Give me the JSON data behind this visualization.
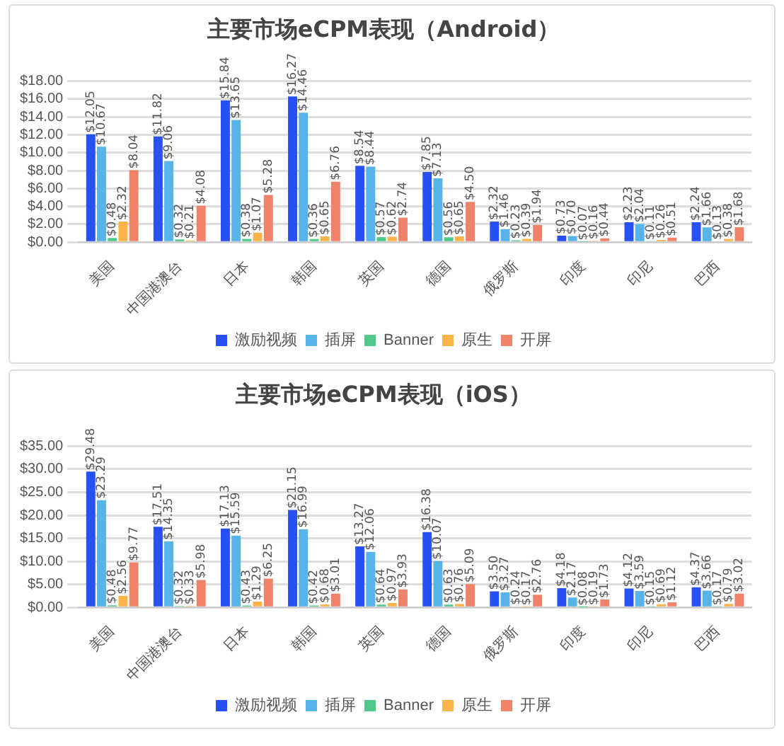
{
  "chart_data": [
    {
      "type": "bar",
      "title": "主要市场eCPM表现（Android）",
      "categories": [
        "美国",
        "中国港澳台",
        "日本",
        "韩国",
        "英国",
        "德国",
        "俄罗斯",
        "印度",
        "印尼",
        "巴西"
      ],
      "series": [
        {
          "name": "激励视频",
          "color": "#2851f5",
          "values": [
            12.05,
            11.82,
            15.84,
            16.27,
            8.54,
            7.85,
            2.32,
            0.73,
            2.23,
            2.24
          ],
          "value_labels": [
            "$12.05",
            "$11.82",
            "$15.84",
            "$16.27",
            "$8.54",
            "$7.85",
            "$2.32",
            "$0.73",
            "$2.23",
            "$2.24"
          ]
        },
        {
          "name": "插屏",
          "color": "#56b4e9",
          "values": [
            10.67,
            9.06,
            13.65,
            14.46,
            8.44,
            7.13,
            1.46,
            0.7,
            2.04,
            1.66
          ],
          "value_labels": [
            "$10.67",
            "$9.06",
            "$13.65",
            "$14.46",
            "$8.44",
            "$7.13",
            "$1.46",
            "$0.70",
            "$2.04",
            "$1.66"
          ]
        },
        {
          "name": "Banner",
          "color": "#4ec98a",
          "values": [
            0.48,
            0.32,
            0.38,
            0.36,
            0.57,
            0.56,
            0.23,
            0.07,
            0.11,
            0.13
          ],
          "value_labels": [
            "$0.48",
            "$0.32",
            "$0.38",
            "$0.36",
            "$0.57",
            "$0.56",
            "$0.23",
            "$0.07",
            "$0.11",
            "$0.13"
          ]
        },
        {
          "name": "原生",
          "color": "#fbb44a",
          "values": [
            2.32,
            0.21,
            1.07,
            0.65,
            0.62,
            0.65,
            0.39,
            0.16,
            0.26,
            0.38
          ],
          "value_labels": [
            "$2.32",
            "$0.21",
            "$1.07",
            "$0.65",
            "$0.62",
            "$0.65",
            "$0.39",
            "$0.16",
            "$0.26",
            "$0.38"
          ]
        },
        {
          "name": "开屏",
          "color": "#f0826a",
          "values": [
            8.04,
            4.08,
            5.28,
            6.76,
            2.74,
            4.5,
            1.94,
            0.44,
            0.51,
            1.68
          ],
          "value_labels": [
            "$8.04",
            "$4.08",
            "$5.28",
            "$6.76",
            "$2.74",
            "$4.50",
            "$1.94",
            "$0.44",
            "$0.51",
            "$1.68"
          ]
        }
      ],
      "ylim": [
        0,
        18
      ],
      "yticks": [
        {
          "value": 0,
          "label": "$0.00"
        },
        {
          "value": 2,
          "label": "$2.00"
        },
        {
          "value": 4,
          "label": "$4.00"
        },
        {
          "value": 6,
          "label": "$6.00"
        },
        {
          "value": 8,
          "label": "$8.00"
        },
        {
          "value": 10,
          "label": "$10.00"
        },
        {
          "value": 12,
          "label": "$12.00"
        },
        {
          "value": 14,
          "label": "$14.00"
        },
        {
          "value": 16,
          "label": "$16.00"
        },
        {
          "value": 18,
          "label": "$18.00"
        }
      ],
      "grid": "y",
      "legend": "bottom"
    },
    {
      "type": "bar",
      "title": "主要市场eCPM表现（iOS）",
      "categories": [
        "美国",
        "中国港澳台",
        "日本",
        "韩国",
        "英国",
        "德国",
        "俄罗斯",
        "印度",
        "印尼",
        "巴西"
      ],
      "series": [
        {
          "name": "激励视频",
          "color": "#2851f5",
          "values": [
            29.48,
            17.51,
            17.13,
            21.15,
            13.27,
            16.38,
            3.5,
            4.18,
            4.12,
            4.37
          ],
          "value_labels": [
            "$29.48",
            "$17.51",
            "$17.13",
            "$21.15",
            "$13.27",
            "$16.38",
            "$3.50",
            "$4.18",
            "$4.12",
            "$4.37"
          ]
        },
        {
          "name": "插屏",
          "color": "#56b4e9",
          "values": [
            23.29,
            14.35,
            15.59,
            16.99,
            12.06,
            10.07,
            3.27,
            2.17,
            3.59,
            3.66
          ],
          "value_labels": [
            "$23.29",
            "$14.35",
            "$15.59",
            "$16.99",
            "$12.06",
            "$10.07",
            "$3.27",
            "$2.17",
            "$3.59",
            "$3.66"
          ]
        },
        {
          "name": "Banner",
          "color": "#4ec98a",
          "values": [
            0.48,
            0.32,
            0.43,
            0.42,
            0.64,
            0.63,
            0.24,
            0.08,
            0.15,
            0.17
          ],
          "value_labels": [
            "$0.48",
            "$0.32",
            "$0.43",
            "$0.42",
            "$0.64",
            "$0.63",
            "$0.24",
            "$0.08",
            "$0.15",
            "$0.17"
          ]
        },
        {
          "name": "原生",
          "color": "#fbb44a",
          "values": [
            2.56,
            0.33,
            1.29,
            0.68,
            0.97,
            0.76,
            0.17,
            0.19,
            0.69,
            0.79
          ],
          "value_labels": [
            "$2.56",
            "$0.33",
            "$1.29",
            "$0.68",
            "$0.97",
            "$0.76",
            "$0.17",
            "$0.19",
            "$0.69",
            "$0.79"
          ]
        },
        {
          "name": "开屏",
          "color": "#f0826a",
          "values": [
            9.77,
            5.98,
            6.25,
            3.01,
            3.93,
            5.09,
            2.76,
            1.73,
            1.12,
            3.02
          ],
          "value_labels": [
            "$9.77",
            "$5.98",
            "$6.25",
            "$3.01",
            "$3.93",
            "$5.09",
            "$2.76",
            "$1.73",
            "$1.12",
            "$3.02"
          ]
        }
      ],
      "ylim": [
        0,
        35
      ],
      "yticks": [
        {
          "value": 0,
          "label": "$0.00"
        },
        {
          "value": 5,
          "label": "$5.00"
        },
        {
          "value": 10,
          "label": "$10.00"
        },
        {
          "value": 15,
          "label": "$15.00"
        },
        {
          "value": 20,
          "label": "$20.00"
        },
        {
          "value": 25,
          "label": "$25.00"
        },
        {
          "value": 30,
          "label": "$30.00"
        },
        {
          "value": 35,
          "label": "$35.00"
        }
      ],
      "grid": "y",
      "legend": "bottom"
    }
  ]
}
